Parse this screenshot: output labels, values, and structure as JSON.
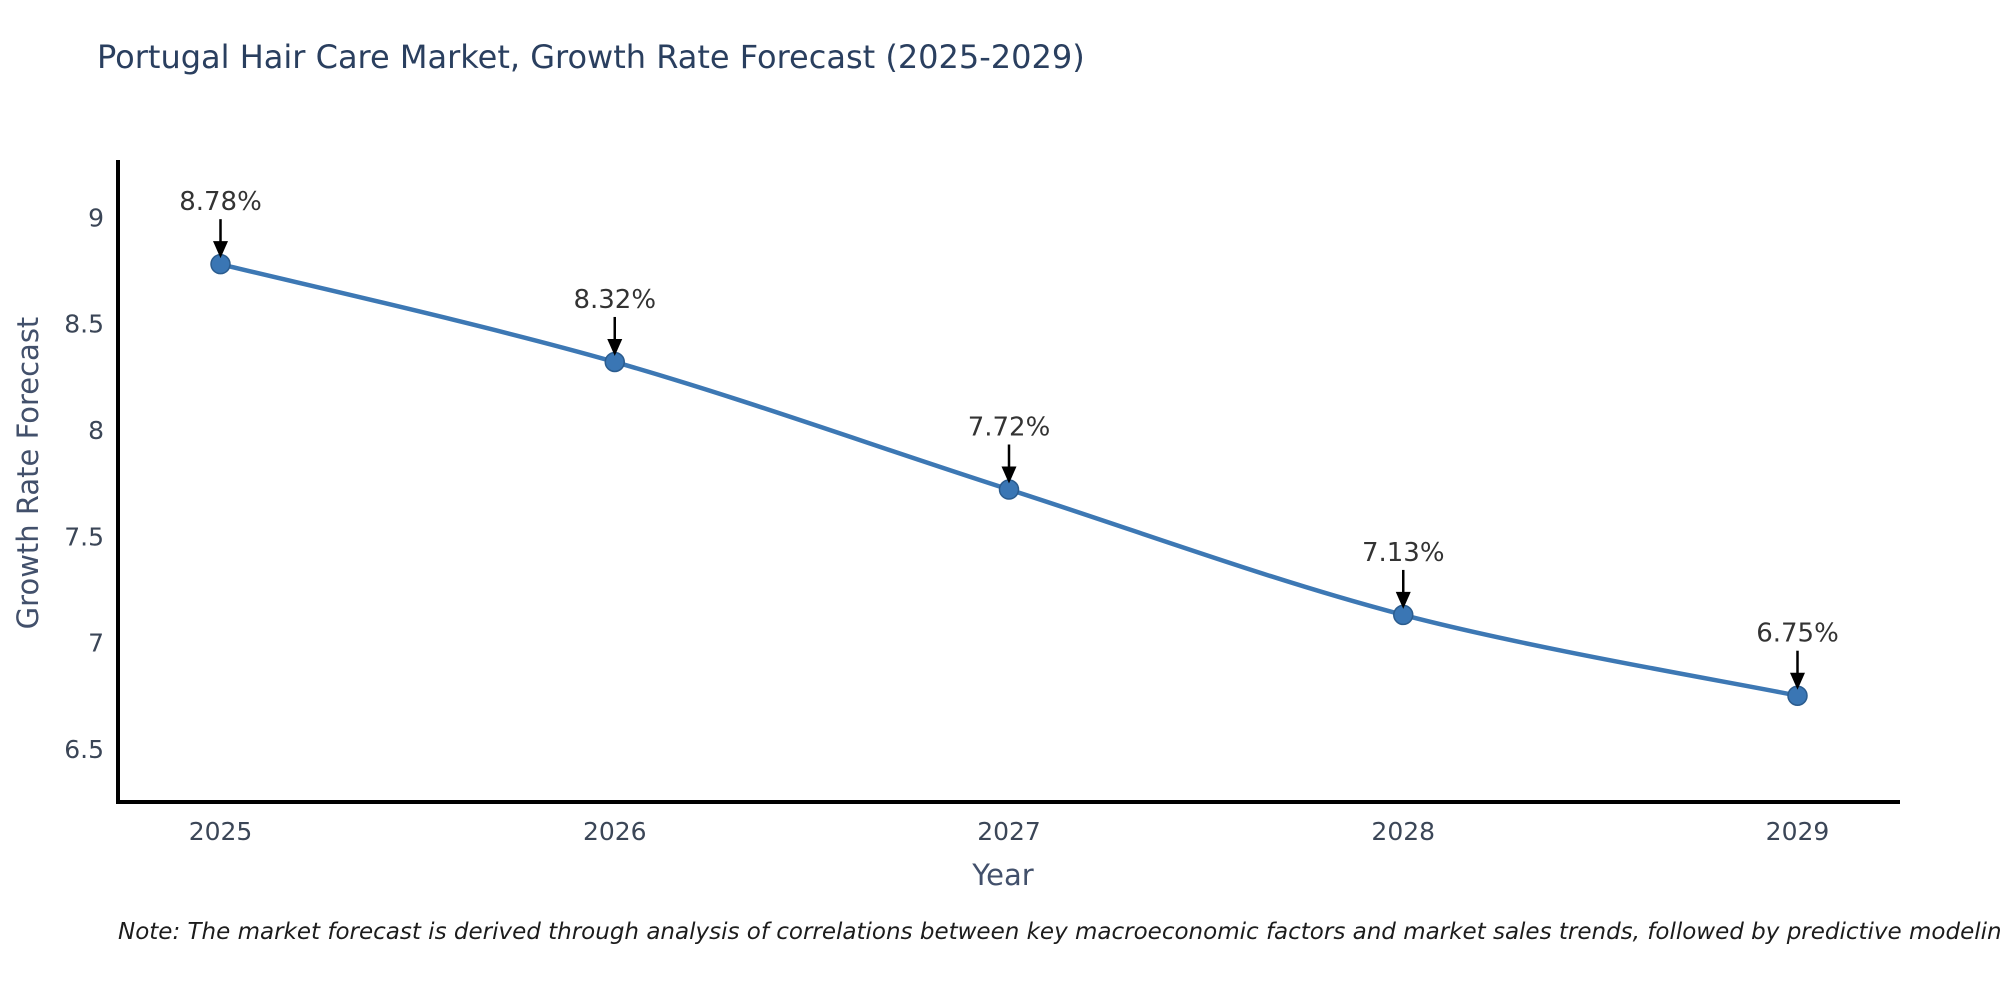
{
  "note": "Note: The market forecast is derived through analysis of correlations between key macroeconomic factors and market sales trends, followed by predictive modeling to project future sales",
  "chart_data": {
    "type": "line",
    "title": "Portugal Hair Care Market, Growth Rate Forecast (2025-2029)",
    "xlabel": "Year",
    "ylabel": "Growth Rate Forecast",
    "x": [
      2025,
      2026,
      2027,
      2028,
      2029
    ],
    "values": [
      8.78,
      8.32,
      7.72,
      7.13,
      6.75
    ],
    "point_labels": [
      "8.78%",
      "8.32%",
      "7.72%",
      "7.13%",
      "6.75%"
    ],
    "xticks": [
      "2025",
      "2026",
      "2027",
      "2028",
      "2029"
    ],
    "yticks": [
      6.5,
      7,
      7.5,
      8,
      8.5,
      9
    ],
    "xlim": [
      2024.74,
      2029.26
    ],
    "ylim": [
      6.25,
      9.27
    ],
    "grid": false,
    "legend": "none",
    "line_color": "#3d78b4",
    "marker_color": "#3a76b4",
    "marker_edge_color": "#2b5c8e",
    "axis_color": "#000000",
    "tick_color": "#3b4657",
    "annotation_color": "#333333",
    "annotation_arrow_color": "#000000"
  }
}
